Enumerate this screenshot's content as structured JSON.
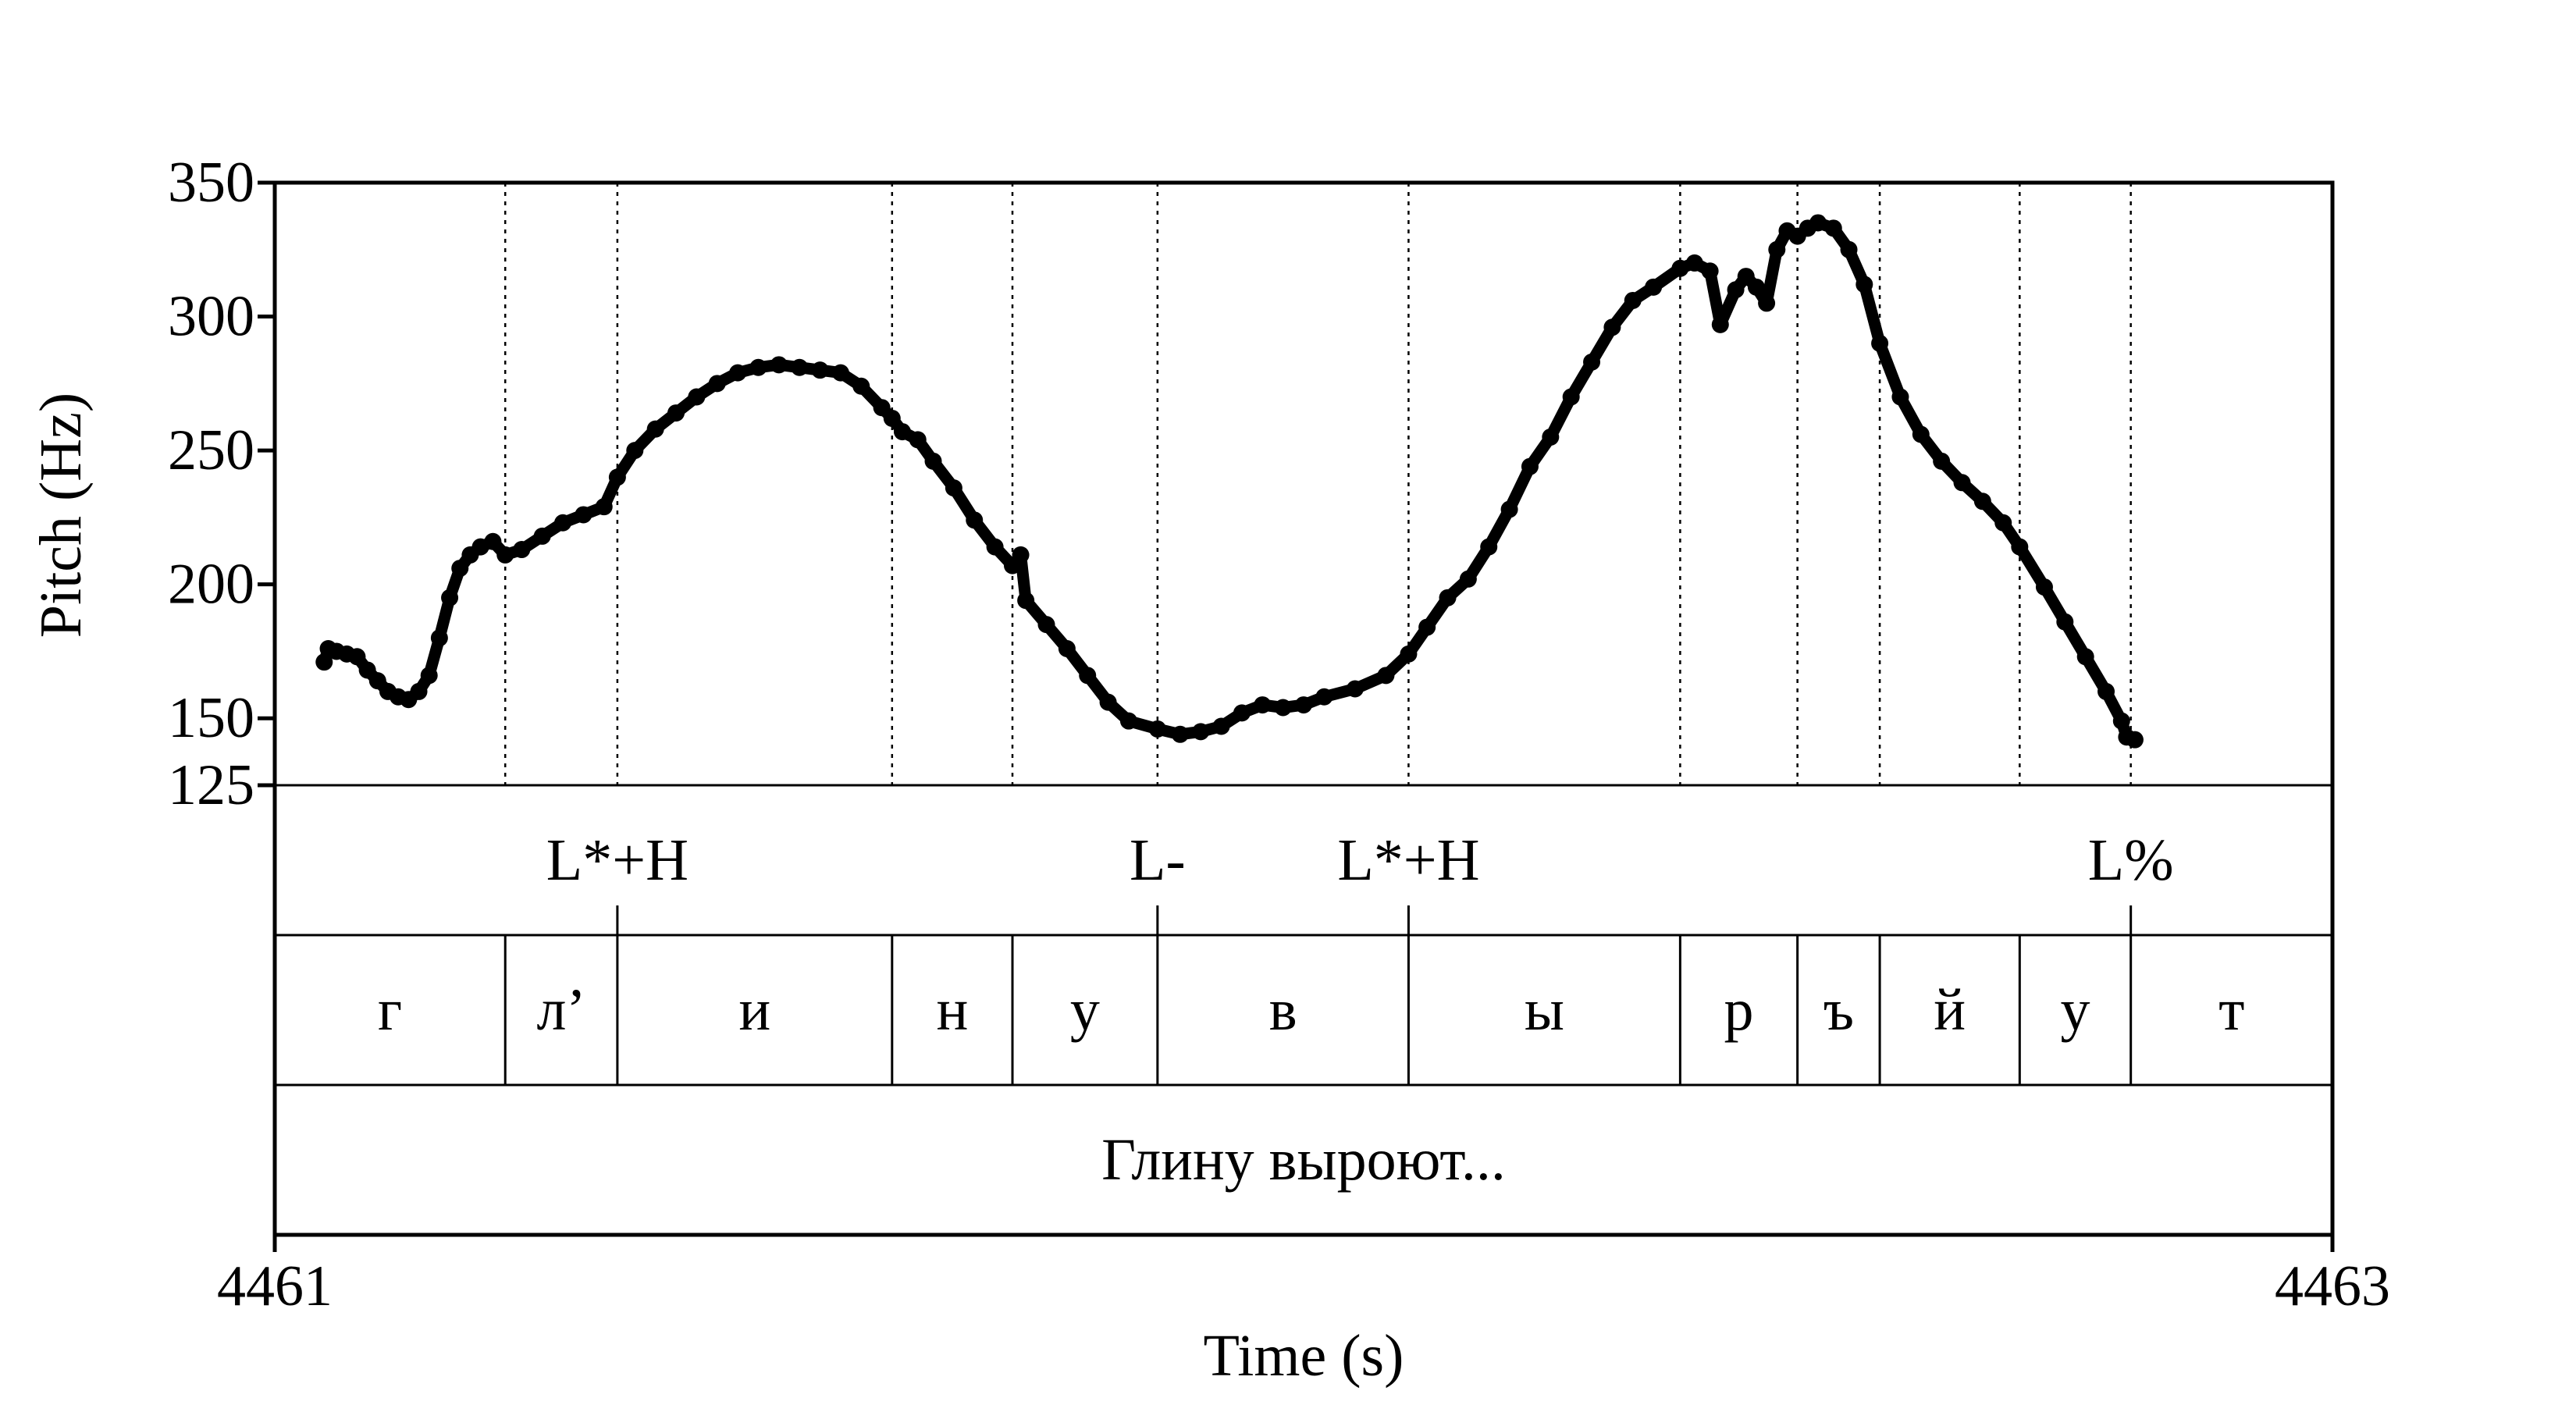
{
  "chart_data": {
    "type": "scatter",
    "title": "",
    "xlabel": "Time (s)",
    "ylabel": "Pitch (Hz)",
    "xlim": [
      4461,
      4463
    ],
    "ylim": [
      125,
      350
    ],
    "x_ticks": [
      "4461",
      "4463"
    ],
    "y_ticks": [
      {
        "value": 125,
        "label": "125"
      },
      {
        "value": 150,
        "label": "150"
      },
      {
        "value": 200,
        "label": "200"
      },
      {
        "value": 250,
        "label": "250"
      },
      {
        "value": 300,
        "label": "300"
      },
      {
        "value": 350,
        "label": "350"
      }
    ],
    "grid": false,
    "boundaries": [
      4461.224,
      4461.333,
      4461.6,
      4461.717,
      4461.858,
      4462.102,
      4462.366,
      4462.48,
      4462.56,
      4462.696,
      4462.804
    ],
    "tones": [
      {
        "label": "L*+H",
        "time": 4461.333
      },
      {
        "label": "L-",
        "time": 4461.858
      },
      {
        "label": "L*+H",
        "time": 4462.102
      },
      {
        "label": "L%",
        "time": 4462.804
      }
    ],
    "segments": [
      {
        "label": "г",
        "start": 4461.0,
        "end": 4461.224
      },
      {
        "label": "л’",
        "start": 4461.224,
        "end": 4461.333
      },
      {
        "label": "и",
        "start": 4461.333,
        "end": 4461.6
      },
      {
        "label": "н",
        "start": 4461.6,
        "end": 4461.717
      },
      {
        "label": "у",
        "start": 4461.717,
        "end": 4461.858
      },
      {
        "label": "в",
        "start": 4461.858,
        "end": 4462.102
      },
      {
        "label": "ы",
        "start": 4462.102,
        "end": 4462.366
      },
      {
        "label": "р",
        "start": 4462.366,
        "end": 4462.48
      },
      {
        "label": "ъ",
        "start": 4462.48,
        "end": 4462.56
      },
      {
        "label": "й",
        "start": 4462.56,
        "end": 4462.696
      },
      {
        "label": "у",
        "start": 4462.696,
        "end": 4462.804
      },
      {
        "label": "т",
        "start": 4462.804,
        "end": 4463.0
      }
    ],
    "phrase": "Глину выроют...",
    "pitch_track": [
      [
        4461.048,
        171
      ],
      [
        4461.052,
        176
      ],
      [
        4461.06,
        175
      ],
      [
        4461.07,
        174
      ],
      [
        4461.08,
        173
      ],
      [
        4461.09,
        168
      ],
      [
        4461.1,
        164
      ],
      [
        4461.11,
        160
      ],
      [
        4461.12,
        158
      ],
      [
        4461.13,
        157
      ],
      [
        4461.14,
        160
      ],
      [
        4461.15,
        166
      ],
      [
        4461.16,
        180
      ],
      [
        4461.17,
        195
      ],
      [
        4461.18,
        206
      ],
      [
        4461.19,
        211
      ],
      [
        4461.2,
        214
      ],
      [
        4461.212,
        216
      ],
      [
        4461.224,
        211
      ],
      [
        4461.24,
        213
      ],
      [
        4461.26,
        218
      ],
      [
        4461.28,
        223
      ],
      [
        4461.3,
        226
      ],
      [
        4461.32,
        229
      ],
      [
        4461.333,
        240
      ],
      [
        4461.35,
        250
      ],
      [
        4461.37,
        258
      ],
      [
        4461.39,
        264
      ],
      [
        4461.41,
        270
      ],
      [
        4461.43,
        275
      ],
      [
        4461.45,
        279
      ],
      [
        4461.47,
        281
      ],
      [
        4461.49,
        282
      ],
      [
        4461.51,
        281
      ],
      [
        4461.53,
        280
      ],
      [
        4461.55,
        279
      ],
      [
        4461.57,
        274
      ],
      [
        4461.59,
        266
      ],
      [
        4461.6,
        262
      ],
      [
        4461.61,
        257
      ],
      [
        4461.625,
        254
      ],
      [
        4461.64,
        246
      ],
      [
        4461.66,
        236
      ],
      [
        4461.68,
        224
      ],
      [
        4461.7,
        214
      ],
      [
        4461.717,
        207
      ],
      [
        4461.725,
        211
      ],
      [
        4461.73,
        194
      ],
      [
        4461.75,
        185
      ],
      [
        4461.77,
        176
      ],
      [
        4461.79,
        166
      ],
      [
        4461.81,
        156
      ],
      [
        4461.83,
        149
      ],
      [
        4461.858,
        146
      ],
      [
        4461.88,
        144
      ],
      [
        4461.9,
        145
      ],
      [
        4461.92,
        147
      ],
      [
        4461.94,
        152
      ],
      [
        4461.96,
        155
      ],
      [
        4461.98,
        154
      ],
      [
        4462.0,
        155
      ],
      [
        4462.02,
        158
      ],
      [
        4462.05,
        161
      ],
      [
        4462.08,
        166
      ],
      [
        4462.102,
        174
      ],
      [
        4462.12,
        184
      ],
      [
        4462.14,
        195
      ],
      [
        4462.16,
        202
      ],
      [
        4462.18,
        214
      ],
      [
        4462.2,
        228
      ],
      [
        4462.22,
        244
      ],
      [
        4462.24,
        255
      ],
      [
        4462.26,
        270
      ],
      [
        4462.28,
        283
      ],
      [
        4462.3,
        296
      ],
      [
        4462.32,
        306
      ],
      [
        4462.34,
        311
      ],
      [
        4462.366,
        318
      ],
      [
        4462.38,
        320
      ],
      [
        4462.395,
        317
      ],
      [
        4462.405,
        297
      ],
      [
        4462.42,
        310
      ],
      [
        4462.43,
        315
      ],
      [
        4462.44,
        311
      ],
      [
        4462.45,
        305
      ],
      [
        4462.46,
        325
      ],
      [
        4462.47,
        332
      ],
      [
        4462.48,
        330
      ],
      [
        4462.49,
        333
      ],
      [
        4462.5,
        335
      ],
      [
        4462.515,
        333
      ],
      [
        4462.53,
        325
      ],
      [
        4462.545,
        312
      ],
      [
        4462.56,
        290
      ],
      [
        4462.58,
        270
      ],
      [
        4462.6,
        256
      ],
      [
        4462.62,
        246
      ],
      [
        4462.64,
        238
      ],
      [
        4462.66,
        231
      ],
      [
        4462.68,
        223
      ],
      [
        4462.696,
        214
      ],
      [
        4462.72,
        199
      ],
      [
        4462.74,
        186
      ],
      [
        4462.76,
        173
      ],
      [
        4462.78,
        160
      ],
      [
        4462.795,
        149
      ],
      [
        4462.8,
        143
      ],
      [
        4462.808,
        142
      ]
    ]
  }
}
